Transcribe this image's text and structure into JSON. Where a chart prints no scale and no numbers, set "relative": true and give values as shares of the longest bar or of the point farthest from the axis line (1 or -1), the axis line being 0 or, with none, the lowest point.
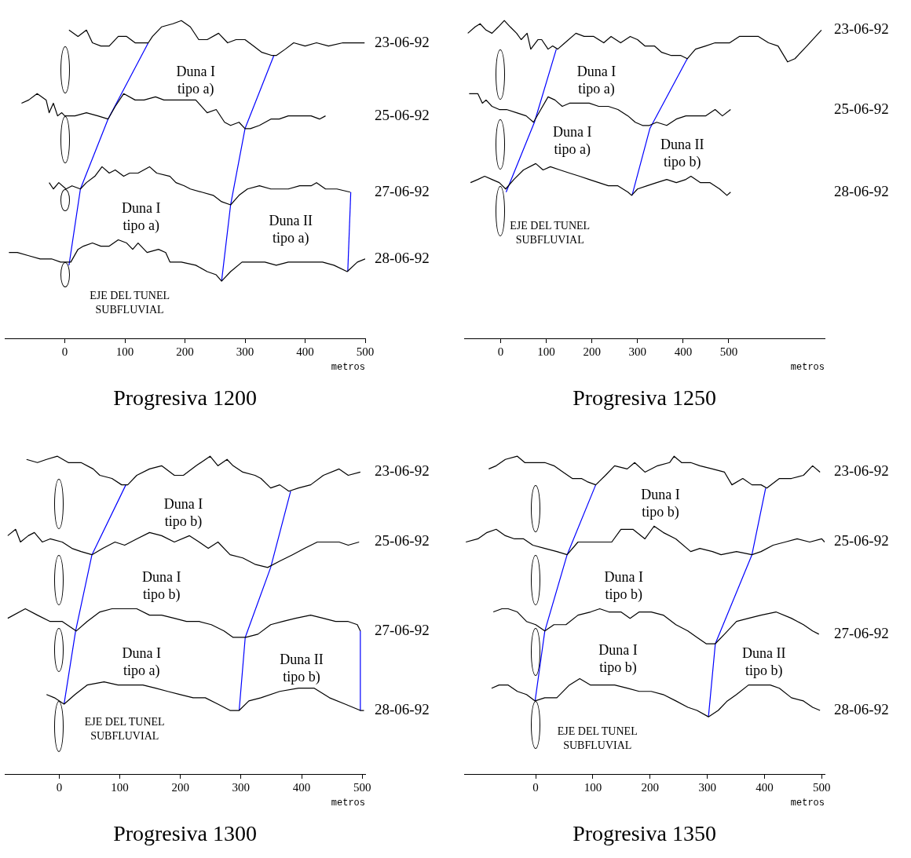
{
  "chart_data": [
    {
      "type": "line",
      "title": "Progresiva 1200",
      "xlabel": "metros",
      "relative": true,
      "xlim": [
        -100,
        500
      ],
      "xticks": [
        0,
        100,
        200,
        300,
        400,
        500
      ],
      "tick_labels": "x",
      "marker": "none",
      "line_style": "solid",
      "series": [
        {
          "name": "23-06-92",
          "color": "#000000",
          "x": [
            7,
            22,
            36,
            46,
            60,
            74,
            89,
            103,
            117,
            139,
            146,
            161,
            180,
            194,
            209,
            223,
            237,
            256,
            271,
            285,
            300,
            314,
            328,
            345,
            352,
            367,
            381,
            400,
            419,
            439,
            463,
            482,
            499
          ],
          "values": [
            0.97,
            0.95,
            0.97,
            0.93,
            0.92,
            0.92,
            0.95,
            0.95,
            0.93,
            0.93,
            0.95,
            0.98,
            0.99,
            1,
            0.98,
            0.94,
            0.94,
            0.96,
            0.93,
            0.94,
            0.94,
            0.92,
            0.9,
            0.89,
            0.89,
            0.91,
            0.93,
            0.92,
            0.93,
            0.92,
            0.93,
            0.93,
            0.93
          ]
        },
        {
          "name": "25-06-92",
          "color": "#000000",
          "x": [
            -72,
            -60,
            -46,
            -31,
            -26,
            -19,
            -12,
            -5,
            0,
            17,
            36,
            55,
            72,
            84,
            98,
            117,
            132,
            151,
            165,
            180,
            199,
            218,
            237,
            252,
            266,
            276,
            290,
            300,
            309,
            324,
            343,
            357,
            372,
            391,
            410,
            424,
            434
          ],
          "values": [
            0.74,
            0.75,
            0.77,
            0.75,
            0.71,
            0.74,
            0.7,
            0.71,
            0.7,
            0.7,
            0.71,
            0.7,
            0.69,
            0.73,
            0.77,
            0.75,
            0.75,
            0.76,
            0.75,
            0.75,
            0.75,
            0.75,
            0.71,
            0.72,
            0.68,
            0.67,
            0.68,
            0.66,
            0.66,
            0.67,
            0.69,
            0.69,
            0.7,
            0.7,
            0.7,
            0.69,
            0.7
          ]
        },
        {
          "name": "27-06-92",
          "color": "#000000",
          "x": [
            -26,
            -19,
            -10,
            2,
            12,
            26,
            36,
            50,
            62,
            74,
            84,
            98,
            108,
            122,
            141,
            153,
            175,
            185,
            199,
            209,
            228,
            247,
            261,
            276,
            290,
            304,
            324,
            343,
            352,
            372,
            391,
            410,
            419,
            434,
            453,
            475
          ],
          "values": [
            0.49,
            0.47,
            0.49,
            0.47,
            0.48,
            0.47,
            0.49,
            0.51,
            0.54,
            0.52,
            0.53,
            0.51,
            0.52,
            0.52,
            0.54,
            0.52,
            0.51,
            0.49,
            0.48,
            0.47,
            0.46,
            0.45,
            0.43,
            0.42,
            0.45,
            0.47,
            0.48,
            0.47,
            0.47,
            0.47,
            0.48,
            0.48,
            0.49,
            0.47,
            0.47,
            0.46
          ]
        },
        {
          "name": "28-06-92",
          "color": "#000000",
          "x": [
            -93,
            -79,
            -60,
            -41,
            -22,
            -7,
            0,
            10,
            22,
            31,
            46,
            60,
            74,
            89,
            103,
            113,
            122,
            137,
            156,
            168,
            175,
            194,
            218,
            237,
            252,
            261,
            276,
            295,
            314,
            333,
            352,
            372,
            391,
            410,
            429,
            448,
            470,
            487,
            500
          ],
          "values": [
            0.27,
            0.27,
            0.26,
            0.25,
            0.25,
            0.24,
            0.24,
            0.24,
            0.28,
            0.29,
            0.3,
            0.29,
            0.29,
            0.31,
            0.3,
            0.28,
            0.3,
            0.27,
            0.28,
            0.27,
            0.24,
            0.24,
            0.23,
            0.21,
            0.2,
            0.18,
            0.21,
            0.24,
            0.24,
            0.24,
            0.23,
            0.24,
            0.24,
            0.24,
            0.24,
            0.23,
            0.21,
            0.24,
            0.25
          ]
        },
        {
          "color": "#0000ff",
          "x": [
            139,
            72,
            26,
            7
          ],
          "values": [
            0.93,
            0.69,
            0.47,
            0.23
          ]
        },
        {
          "color": "#0000ff",
          "x": [
            348,
            300,
            276,
            261
          ],
          "values": [
            0.89,
            0.66,
            0.42,
            0.18
          ]
        },
        {
          "color": "#0000ff",
          "x": [
            476,
            471
          ],
          "values": [
            0.46,
            0.21
          ]
        }
      ],
      "annotations": [
        "Duna I\ntipo a)",
        "Duna I\ntipo a)",
        "Duna II\ntipo a)",
        "EJE DEL TUNEL\nSUBFLUVIAL"
      ]
    },
    {
      "type": "line",
      "title": "Progresiva 1250",
      "xlabel": "metros",
      "relative": true,
      "xlim": [
        -80,
        710
      ],
      "xticks": [
        0,
        100,
        200,
        300,
        400,
        500
      ],
      "tick_labels": "x",
      "marker": "none",
      "line_style": "solid",
      "series": [
        {
          "name": "23-06-92",
          "color": "#000000",
          "x": [
            -72,
            -56,
            -45,
            -32,
            -19,
            -5,
            8,
            21,
            35,
            45,
            58,
            66,
            82,
            90,
            104,
            114,
            125,
            141,
            165,
            183,
            204,
            226,
            242,
            263,
            284,
            300,
            316,
            337,
            353,
            374,
            395,
            409,
            427,
            449,
            470,
            502,
            523,
            544,
            565,
            587,
            608,
            629,
            645,
            671,
            703
          ],
          "values": [
            0.96,
            0.98,
            0.99,
            0.97,
            0.96,
            0.98,
            1,
            0.98,
            0.96,
            0.94,
            0.96,
            0.91,
            0.94,
            0.94,
            0.91,
            0.92,
            0.91,
            0.93,
            0.96,
            0.95,
            0.95,
            0.93,
            0.95,
            0.93,
            0.95,
            0.94,
            0.92,
            0.92,
            0.9,
            0.89,
            0.89,
            0.88,
            0.91,
            0.92,
            0.93,
            0.93,
            0.95,
            0.95,
            0.95,
            0.93,
            0.92,
            0.87,
            0.88,
            0.92,
            0.97
          ]
        },
        {
          "name": "25-06-92",
          "color": "#000000",
          "x": [
            -69,
            -61,
            -50,
            -40,
            -32,
            -19,
            -3,
            13,
            35,
            56,
            72,
            88,
            104,
            119,
            135,
            151,
            167,
            194,
            215,
            236,
            257,
            279,
            295,
            311,
            326,
            342,
            364,
            385,
            406,
            427,
            449,
            470,
            486,
            504
          ],
          "values": [
            0.77,
            0.77,
            0.77,
            0.74,
            0.75,
            0.73,
            0.72,
            0.72,
            0.71,
            0.7,
            0.68,
            0.72,
            0.76,
            0.75,
            0.73,
            0.74,
            0.74,
            0.74,
            0.73,
            0.73,
            0.72,
            0.7,
            0.68,
            0.67,
            0.67,
            0.68,
            0.67,
            0.69,
            0.7,
            0.7,
            0.7,
            0.72,
            0.7,
            0.72
          ]
        },
        {
          "name": "28-06-92",
          "color": "#000000",
          "x": [
            -66,
            -50,
            -35,
            -19,
            -3,
            11,
            29,
            50,
            77,
            93,
            109,
            130,
            151,
            173,
            194,
            215,
            236,
            257,
            279,
            287,
            300,
            321,
            342,
            364,
            385,
            406,
            417,
            438,
            459,
            480,
            496,
            504
          ],
          "values": [
            0.49,
            0.5,
            0.51,
            0.5,
            0.49,
            0.47,
            0.5,
            0.53,
            0.55,
            0.53,
            0.54,
            0.53,
            0.52,
            0.51,
            0.5,
            0.49,
            0.48,
            0.48,
            0.46,
            0.45,
            0.47,
            0.48,
            0.49,
            0.5,
            0.49,
            0.5,
            0.51,
            0.49,
            0.49,
            0.47,
            0.45,
            0.46
          ]
        },
        {
          "color": "#0000ff",
          "x": [
            122,
            74,
            12
          ],
          "values": [
            0.91,
            0.68,
            0.46
          ]
        },
        {
          "color": "#0000ff",
          "x": [
            409,
            327,
            288
          ],
          "values": [
            0.88,
            0.66,
            0.45
          ]
        }
      ],
      "annotations": [
        "Duna I\ntipo a)",
        "Duna I\ntipo a)",
        "Duna II\ntipo b)",
        "EJE DEL TUNEL\nSUBFLUVIAL"
      ]
    },
    {
      "type": "line",
      "title": "Progresiva 1300",
      "xlabel": "metros",
      "relative": true,
      "xlim": [
        -90,
        505
      ],
      "xticks": [
        0,
        100,
        200,
        300,
        400,
        500
      ],
      "tick_labels": "x",
      "marker": "none",
      "line_style": "solid",
      "series": [
        {
          "name": "23-06-92",
          "color": "#000000",
          "x": [
            -54,
            -36,
            -21,
            -3,
            15,
            36,
            56,
            67,
            87,
            103,
            113,
            128,
            149,
            169,
            190,
            205,
            226,
            249,
            262,
            277,
            287,
            303,
            323,
            333,
            349,
            364,
            379,
            395,
            415,
            436,
            462,
            477,
            497
          ],
          "values": [
            0.99,
            0.98,
            0.99,
            1,
            0.98,
            0.98,
            0.96,
            0.94,
            0.93,
            0.91,
            0.91,
            0.94,
            0.96,
            0.97,
            0.94,
            0.94,
            0.97,
            1,
            0.97,
            0.99,
            0.97,
            0.95,
            0.94,
            0.93,
            0.9,
            0.91,
            0.89,
            0.9,
            0.91,
            0.94,
            0.96,
            0.94,
            0.95
          ]
        },
        {
          "name": "25-06-92",
          "color": "#000000",
          "x": [
            -85,
            -72,
            -64,
            -51,
            -41,
            -28,
            -15,
            5,
            21,
            36,
            54,
            72,
            92,
            108,
            128,
            149,
            169,
            190,
            215,
            231,
            246,
            262,
            282,
            303,
            323,
            344,
            364,
            385,
            405,
            426,
            441,
            462,
            477,
            495
          ],
          "values": [
            0.75,
            0.77,
            0.73,
            0.75,
            0.76,
            0.73,
            0.74,
            0.73,
            0.71,
            0.7,
            0.69,
            0.71,
            0.73,
            0.72,
            0.74,
            0.76,
            0.75,
            0.73,
            0.75,
            0.73,
            0.71,
            0.73,
            0.69,
            0.68,
            0.66,
            0.65,
            0.67,
            0.69,
            0.71,
            0.73,
            0.73,
            0.73,
            0.72,
            0.73
          ]
        },
        {
          "name": "27-06-92",
          "color": "#000000",
          "x": [
            -85,
            -56,
            -36,
            -15,
            5,
            28,
            46,
            67,
            87,
            108,
            128,
            149,
            169,
            190,
            210,
            231,
            251,
            272,
            287,
            308,
            328,
            349,
            369,
            390,
            415,
            436,
            456,
            477,
            492,
            497
          ],
          "values": [
            0.49,
            0.52,
            0.5,
            0.48,
            0.48,
            0.45,
            0.48,
            0.51,
            0.52,
            0.52,
            0.52,
            0.5,
            0.5,
            0.49,
            0.48,
            0.48,
            0.47,
            0.45,
            0.43,
            0.43,
            0.44,
            0.47,
            0.48,
            0.49,
            0.5,
            0.49,
            0.48,
            0.48,
            0.47,
            0.45
          ]
        },
        {
          "name": "28-06-92",
          "color": "#000000",
          "x": [
            -21,
            -8,
            8,
            26,
            46,
            74,
            97,
            118,
            138,
            159,
            179,
            200,
            221,
            241,
            262,
            282,
            297,
            313,
            333,
            364,
            395,
            421,
            446,
            472,
            497,
            503
          ],
          "values": [
            0.25,
            0.24,
            0.22,
            0.25,
            0.28,
            0.29,
            0.28,
            0.28,
            0.28,
            0.27,
            0.26,
            0.25,
            0.24,
            0.24,
            0.22,
            0.2,
            0.2,
            0.23,
            0.24,
            0.26,
            0.27,
            0.27,
            0.24,
            0.22,
            0.2,
            0.2
          ]
        },
        {
          "color": "#0000ff",
          "x": [
            110,
            54,
            27,
            8
          ],
          "values": [
            0.91,
            0.69,
            0.45,
            0.22
          ]
        },
        {
          "color": "#0000ff",
          "x": [
            382,
            349,
            307,
            297
          ],
          "values": [
            0.89,
            0.65,
            0.43,
            0.2
          ]
        },
        {
          "color": "#0000ff",
          "x": [
            497,
            497
          ],
          "values": [
            0.45,
            0.2
          ]
        }
      ],
      "annotations": [
        "Duna I\ntipo b)",
        "Duna I\ntipo b)",
        "Duna I\ntipo a)",
        "Duna II\ntipo b)",
        "EJE DEL TUNEL\nSUBFLUVIAL"
      ]
    },
    {
      "type": "line",
      "title": "Progresiva 1350",
      "xlabel": "metros",
      "relative": true,
      "xlim": [
        -125,
        505
      ],
      "xticks": [
        0,
        100,
        200,
        300,
        400,
        500
      ],
      "tick_labels": "x",
      "marker": "none",
      "line_style": "solid",
      "series": [
        {
          "name": "23-06-92",
          "color": "#000000",
          "x": [
            -82,
            -69,
            -53,
            -32,
            -19,
            0,
            16,
            32,
            48,
            64,
            80,
            90,
            105,
            122,
            138,
            160,
            173,
            191,
            213,
            234,
            242,
            255,
            271,
            287,
            309,
            330,
            343,
            362,
            378,
            394,
            404,
            426,
            447,
            468,
            484,
            497
          ],
          "values": [
            0.96,
            0.97,
            0.99,
            1,
            0.98,
            0.98,
            0.98,
            0.97,
            0.95,
            0.93,
            0.93,
            0.92,
            0.91,
            0.94,
            0.97,
            0.96,
            0.98,
            0.95,
            0.97,
            0.98,
            1,
            0.98,
            0.98,
            0.97,
            0.96,
            0.95,
            0.91,
            0.93,
            0.91,
            0.91,
            0.9,
            0.93,
            0.93,
            0.94,
            0.97,
            0.95
          ]
        },
        {
          "name": "25-06-92",
          "color": "#000000",
          "x": [
            -122,
            -101,
            -85,
            -69,
            -53,
            -37,
            -21,
            -5,
            16,
            37,
            55,
            74,
            96,
            117,
            133,
            149,
            170,
            191,
            207,
            223,
            245,
            271,
            287,
            309,
            324,
            351,
            378,
            394,
            415,
            436,
            457,
            479,
            500,
            505
          ],
          "values": [
            0.73,
            0.74,
            0.76,
            0.77,
            0.75,
            0.74,
            0.74,
            0.72,
            0.71,
            0.7,
            0.69,
            0.73,
            0.73,
            0.73,
            0.73,
            0.77,
            0.77,
            0.74,
            0.78,
            0.76,
            0.74,
            0.7,
            0.71,
            0.7,
            0.69,
            0.7,
            0.69,
            0.7,
            0.72,
            0.73,
            0.74,
            0.73,
            0.74,
            0.73
          ]
        },
        {
          "name": "27-06-92",
          "color": "#000000",
          "x": [
            -74,
            -59,
            -48,
            -32,
            -16,
            0,
            16,
            32,
            53,
            74,
            96,
            112,
            128,
            149,
            165,
            181,
            202,
            223,
            245,
            266,
            282,
            298,
            314,
            330,
            351,
            372,
            394,
            420,
            447,
            468,
            484,
            495
          ],
          "values": [
            0.51,
            0.52,
            0.52,
            0.51,
            0.48,
            0.47,
            0.45,
            0.47,
            0.47,
            0.5,
            0.51,
            0.52,
            0.51,
            0.51,
            0.49,
            0.51,
            0.51,
            0.5,
            0.47,
            0.45,
            0.43,
            0.41,
            0.41,
            0.44,
            0.48,
            0.49,
            0.5,
            0.51,
            0.49,
            0.47,
            0.45,
            0.44
          ]
        },
        {
          "name": "28-06-92",
          "color": "#000000",
          "x": [
            -77,
            -64,
            -48,
            -32,
            -16,
            -1,
            16,
            37,
            59,
            77,
            96,
            117,
            138,
            160,
            181,
            202,
            223,
            245,
            266,
            282,
            302,
            319,
            335,
            351,
            372,
            394,
            410,
            426,
            447,
            468,
            484,
            497
          ],
          "values": [
            0.27,
            0.28,
            0.28,
            0.26,
            0.25,
            0.23,
            0.24,
            0.24,
            0.28,
            0.3,
            0.28,
            0.28,
            0.28,
            0.27,
            0.26,
            0.26,
            0.25,
            0.23,
            0.21,
            0.2,
            0.18,
            0.2,
            0.23,
            0.25,
            0.28,
            0.28,
            0.28,
            0.27,
            0.24,
            0.23,
            0.21,
            0.2
          ]
        },
        {
          "color": "#0000ff",
          "x": [
            105,
            55,
            16,
            -1
          ],
          "values": [
            0.91,
            0.69,
            0.45,
            0.23
          ]
        },
        {
          "color": "#0000ff",
          "x": [
            402,
            378,
            314,
            302
          ],
          "values": [
            0.9,
            0.69,
            0.41,
            0.18
          ]
        }
      ],
      "annotations": [
        "Duna I\ntipo b)",
        "Duna I\ntipo b)",
        "Duna I\ntipo b)",
        "Duna II\ntipo b)",
        "EJE DEL TUNEL\nSUBFLUVIAL"
      ]
    }
  ]
}
